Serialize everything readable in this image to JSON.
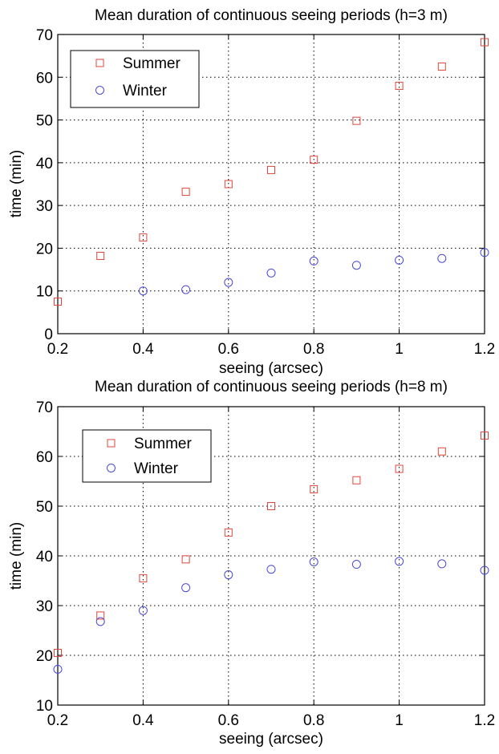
{
  "chart_data": [
    {
      "type": "scatter",
      "title": "Mean duration of continuous seeing periods (h=3 m)",
      "xlabel": "seeing (arcsec)",
      "ylabel": "time (min)",
      "xlim": [
        0.2,
        1.2
      ],
      "ylim": [
        0,
        70
      ],
      "xticks": [
        "0.2",
        "0.4",
        "0.6",
        "0.8",
        "1",
        "1.2"
      ],
      "yticks": [
        "0",
        "10",
        "20",
        "30",
        "40",
        "50",
        "60",
        "70"
      ],
      "grid": true,
      "legend_position": "top-left",
      "series": [
        {
          "name": "Summer",
          "marker": "square",
          "color": "#e0453a",
          "x": [
            0.2,
            0.3,
            0.4,
            0.5,
            0.6,
            0.7,
            0.8,
            0.9,
            1.0,
            1.1,
            1.2
          ],
          "y": [
            7.5,
            18.2,
            22.5,
            33.2,
            35.0,
            38.3,
            40.7,
            49.8,
            58.0,
            62.5,
            68.2
          ]
        },
        {
          "name": "Winter",
          "marker": "circle",
          "color": "#4a4ad8",
          "x": [
            0.4,
            0.5,
            0.6,
            0.7,
            0.8,
            0.9,
            1.0,
            1.1,
            1.2
          ],
          "y": [
            10.0,
            10.3,
            12.0,
            14.2,
            17.0,
            16.0,
            17.2,
            17.6,
            19.0
          ]
        }
      ]
    },
    {
      "type": "scatter",
      "title": "Mean duration of continuous seeing periods (h=8 m)",
      "xlabel": "seeing (arcsec)",
      "ylabel": "time (min)",
      "xlim": [
        0.2,
        1.2
      ],
      "ylim": [
        10,
        70
      ],
      "xticks": [
        "0.2",
        "0.4",
        "0.6",
        "0.8",
        "1",
        "1.2"
      ],
      "yticks": [
        "10",
        "20",
        "30",
        "40",
        "50",
        "60",
        "70"
      ],
      "grid": true,
      "legend_position": "top-left",
      "series": [
        {
          "name": "Summer",
          "marker": "square",
          "color": "#e0453a",
          "x": [
            0.2,
            0.3,
            0.4,
            0.5,
            0.6,
            0.7,
            0.8,
            0.9,
            1.0,
            1.1,
            1.2
          ],
          "y": [
            20.5,
            28.0,
            35.5,
            39.3,
            44.7,
            50.0,
            53.4,
            55.2,
            57.5,
            61.0,
            64.2
          ]
        },
        {
          "name": "Winter",
          "marker": "circle",
          "color": "#4a4ad8",
          "x": [
            0.2,
            0.3,
            0.4,
            0.5,
            0.6,
            0.7,
            0.8,
            0.9,
            1.0,
            1.1,
            1.2
          ],
          "y": [
            17.2,
            26.8,
            29.0,
            33.6,
            36.2,
            37.3,
            38.8,
            38.3,
            38.9,
            38.4,
            37.1
          ]
        }
      ]
    }
  ]
}
